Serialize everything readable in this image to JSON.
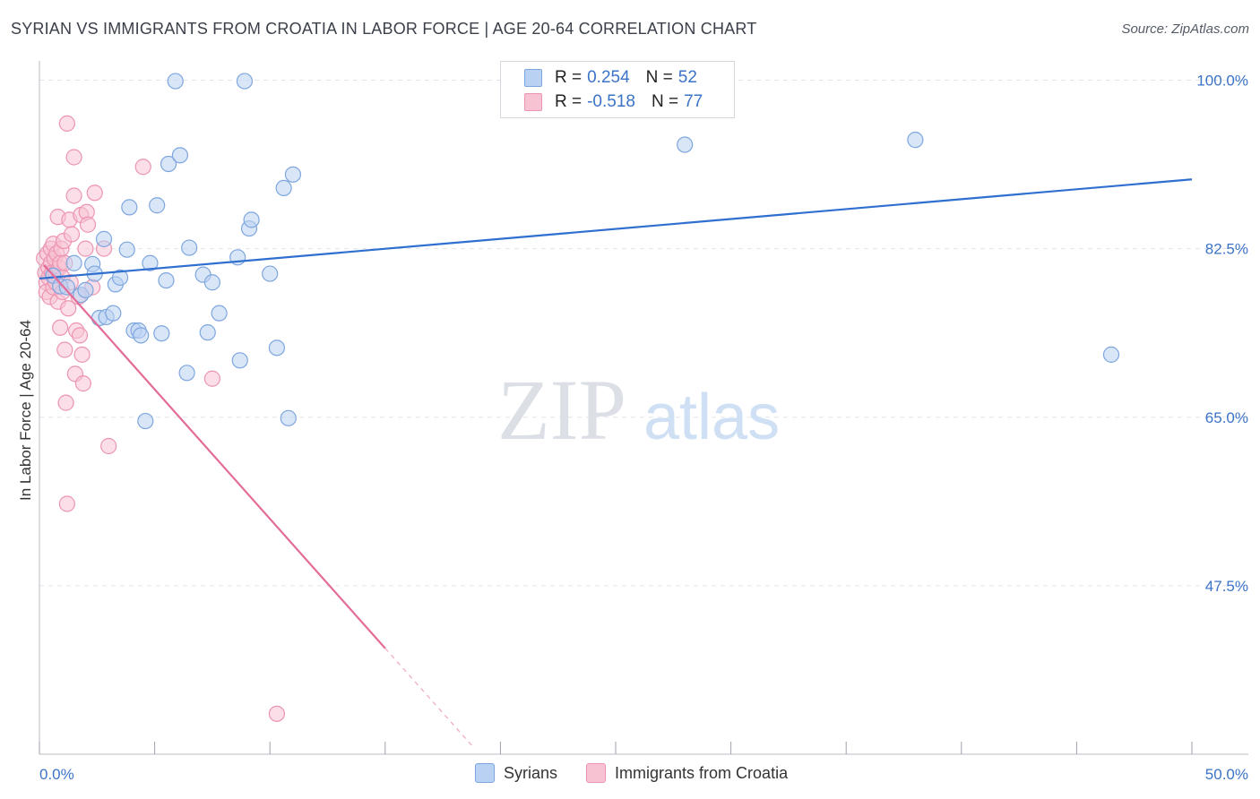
{
  "header": {
    "title": "SYRIAN VS IMMIGRANTS FROM CROATIA IN LABOR FORCE | AGE 20-64 CORRELATION CHART",
    "source": "Source: ZipAtlas.com"
  },
  "watermark": {
    "zip": "ZIP",
    "atlas": "atlas"
  },
  "legend_top": [
    {
      "r_label": "R =",
      "r_value": "0.254",
      "n_label": "N =",
      "n_value": "52"
    },
    {
      "r_label": "R =",
      "r_value": "-0.518",
      "n_label": "N =",
      "n_value": "77"
    }
  ],
  "legend_bottom": [
    "Syrians",
    "Immigrants from Croatia"
  ],
  "colors": {
    "syrians_fill": "#b9d2f3",
    "syrians_stroke": "#7ea6de",
    "syrians_line": "#2f6fcf",
    "croatia_fill": "#f7c3d3",
    "croatia_stroke": "#ec94b1",
    "croatia_line": "#e36b98",
    "tick_text": "#3b73c7",
    "grid": "#e3e5ea"
  },
  "chart_data": {
    "type": "scatter",
    "title": "SYRIAN VS IMMIGRANTS FROM CROATIA IN LABOR FORCE | AGE 20-64 CORRELATION CHART",
    "xlabel": "",
    "ylabel": "In Labor Force | Age 20-64",
    "xlim": [
      0,
      50
    ],
    "ylim": [
      30,
      102
    ],
    "x_tick_labels": [
      "0.0%",
      "50.0%"
    ],
    "y_ticks": [
      100,
      82.5,
      65,
      47.5
    ],
    "y_tick_labels": [
      "100.0%",
      "82.5%",
      "65.0%",
      "47.5%"
    ],
    "series": [
      {
        "name": "Syrians",
        "r": 0.254,
        "n": 52,
        "trend": {
          "x": [
            0,
            50
          ],
          "y": [
            79.4,
            89.7
          ]
        },
        "points": [
          [
            0.6,
            79.7
          ],
          [
            0.9,
            78.6
          ],
          [
            1.2,
            78.5
          ],
          [
            1.5,
            81.0
          ],
          [
            1.8,
            77.7
          ],
          [
            2.0,
            78.2
          ],
          [
            2.3,
            80.9
          ],
          [
            2.4,
            79.9
          ],
          [
            2.6,
            75.3
          ],
          [
            2.8,
            83.5
          ],
          [
            2.9,
            75.4
          ],
          [
            3.2,
            75.8
          ],
          [
            3.3,
            78.8
          ],
          [
            3.5,
            79.5
          ],
          [
            3.8,
            82.4
          ],
          [
            3.9,
            86.8
          ],
          [
            4.1,
            74.0
          ],
          [
            4.3,
            74.0
          ],
          [
            4.4,
            73.5
          ],
          [
            4.6,
            64.6
          ],
          [
            4.8,
            81.0
          ],
          [
            5.1,
            87.0
          ],
          [
            5.3,
            73.7
          ],
          [
            5.5,
            79.2
          ],
          [
            5.6,
            91.3
          ],
          [
            5.9,
            99.9
          ],
          [
            6.1,
            92.2
          ],
          [
            6.4,
            69.6
          ],
          [
            6.5,
            82.6
          ],
          [
            7.1,
            79.8
          ],
          [
            7.3,
            73.8
          ],
          [
            7.5,
            79.0
          ],
          [
            7.8,
            75.8
          ],
          [
            8.6,
            81.6
          ],
          [
            8.7,
            70.9
          ],
          [
            8.9,
            99.9
          ],
          [
            9.1,
            84.6
          ],
          [
            9.2,
            85.5
          ],
          [
            10.0,
            79.9
          ],
          [
            10.3,
            72.2
          ],
          [
            10.6,
            88.8
          ],
          [
            10.8,
            64.9
          ],
          [
            11.0,
            90.2
          ],
          [
            28.0,
            93.3
          ],
          [
            38.0,
            93.8
          ],
          [
            46.5,
            71.5
          ]
        ]
      },
      {
        "name": "Immigrants from Croatia",
        "r": -0.518,
        "n": 77,
        "trend": {
          "x": [
            0.2,
            15
          ],
          "y": [
            80.8,
            41.0
          ]
        },
        "trend_dashed": {
          "x": [
            15,
            18.8
          ],
          "y": [
            41.0,
            30.8
          ]
        },
        "points": [
          [
            0.2,
            81.5
          ],
          [
            0.25,
            80.0
          ],
          [
            0.3,
            79.0
          ],
          [
            0.3,
            78.0
          ],
          [
            0.35,
            82.0
          ],
          [
            0.4,
            80.5
          ],
          [
            0.4,
            79.5
          ],
          [
            0.45,
            77.5
          ],
          [
            0.5,
            81.0
          ],
          [
            0.5,
            82.5
          ],
          [
            0.55,
            80.0
          ],
          [
            0.6,
            78.5
          ],
          [
            0.6,
            83.0
          ],
          [
            0.65,
            81.5
          ],
          [
            0.7,
            80.0
          ],
          [
            0.7,
            79.0
          ],
          [
            0.75,
            82.0
          ],
          [
            0.8,
            77.0
          ],
          [
            0.8,
            85.8
          ],
          [
            0.85,
            80.5
          ],
          [
            0.9,
            74.3
          ],
          [
            0.9,
            81.0
          ],
          [
            0.95,
            82.5
          ],
          [
            1.0,
            79.5
          ],
          [
            1.0,
            78.0
          ],
          [
            1.05,
            83.3
          ],
          [
            1.1,
            72.0
          ],
          [
            1.1,
            81.0
          ],
          [
            1.15,
            66.5
          ],
          [
            1.2,
            95.5
          ],
          [
            1.2,
            56.0
          ],
          [
            1.25,
            76.3
          ],
          [
            1.3,
            85.5
          ],
          [
            1.35,
            79.0
          ],
          [
            1.4,
            84.0
          ],
          [
            1.5,
            88.0
          ],
          [
            1.5,
            92.0
          ],
          [
            1.55,
            69.5
          ],
          [
            1.6,
            74.0
          ],
          [
            1.7,
            77.5
          ],
          [
            1.75,
            73.5
          ],
          [
            1.8,
            86.0
          ],
          [
            1.85,
            71.5
          ],
          [
            1.9,
            68.5
          ],
          [
            2.0,
            82.5
          ],
          [
            2.05,
            86.3
          ],
          [
            2.1,
            85.0
          ],
          [
            2.3,
            78.5
          ],
          [
            2.4,
            88.3
          ],
          [
            2.8,
            82.5
          ],
          [
            3.0,
            62.0
          ],
          [
            4.5,
            91.0
          ],
          [
            7.5,
            69.0
          ],
          [
            10.3,
            34.2
          ]
        ]
      }
    ]
  }
}
